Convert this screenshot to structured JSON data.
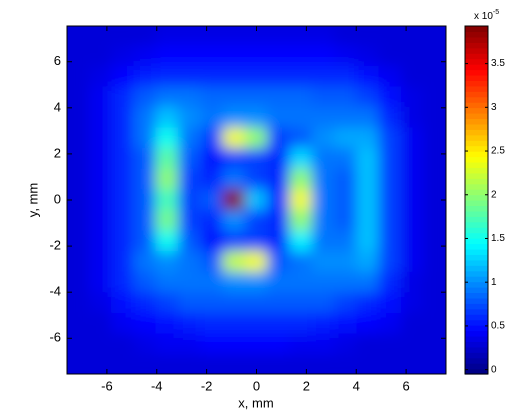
{
  "chart_data": {
    "type": "heatmap",
    "x_label": "x, mm",
    "y_label": "y, mm",
    "colormap": "jet",
    "xlim": [
      -7.6,
      7.6
    ],
    "ylim": [
      -7.55,
      7.55
    ],
    "xticks": [
      -6,
      -4,
      -2,
      0,
      2,
      4,
      6
    ],
    "yticks": [
      -6,
      -4,
      -2,
      0,
      2,
      4,
      6
    ],
    "clim": [
      -0.05,
      3.93
    ],
    "cticks": [
      0,
      0.5,
      1,
      1.5,
      2,
      2.5,
      3,
      3.5
    ],
    "colorbar_scale": {
      "base": "x 10",
      "exponent": "-5"
    },
    "x": [
      -7.15,
      -6.26,
      -5.36,
      -4.47,
      -3.58,
      -2.68,
      -1.79,
      -0.89,
      0,
      0.89,
      1.79,
      2.68,
      3.58,
      4.47,
      5.36,
      6.26,
      7.15
    ],
    "y": [
      7.15,
      6.26,
      5.36,
      4.47,
      3.58,
      2.68,
      1.79,
      0.89,
      0,
      -0.89,
      -1.79,
      -2.68,
      -3.58,
      -4.47,
      -5.36,
      -6.26,
      -7.15
    ],
    "z": [
      [
        0.3,
        0.3,
        0.3,
        0.3,
        0.35,
        0.35,
        0.35,
        0.35,
        0.35,
        0.35,
        0.35,
        0.35,
        0.3,
        0.3,
        0.3,
        0.3,
        0.3
      ],
      [
        0.3,
        0.3,
        0.35,
        0.4,
        0.45,
        0.45,
        0.45,
        0.45,
        0.45,
        0.45,
        0.45,
        0.45,
        0.4,
        0.35,
        0.3,
        0.3,
        0.3
      ],
      [
        0.3,
        0.35,
        0.45,
        0.55,
        0.6,
        0.6,
        0.6,
        0.6,
        0.6,
        0.6,
        0.6,
        0.6,
        0.6,
        0.5,
        0.4,
        0.3,
        0.3
      ],
      [
        0.3,
        0.4,
        0.6,
        0.8,
        0.9,
        0.9,
        0.85,
        0.85,
        0.85,
        0.85,
        0.85,
        0.8,
        0.8,
        0.7,
        0.5,
        0.35,
        0.3
      ],
      [
        0.3,
        0.4,
        0.6,
        0.9,
        1.2,
        1.0,
        0.9,
        1.0,
        1.0,
        0.9,
        0.9,
        0.9,
        0.9,
        0.9,
        0.6,
        0.35,
        0.3
      ],
      [
        0.3,
        0.4,
        0.6,
        0.9,
        1.5,
        0.9,
        0.7,
        2.4,
        2.0,
        0.7,
        0.8,
        1.0,
        1.1,
        1.1,
        0.7,
        0.4,
        0.3
      ],
      [
        0.3,
        0.4,
        0.6,
        0.8,
        1.8,
        0.8,
        0.5,
        0.7,
        0.7,
        0.6,
        1.3,
        0.9,
        0.9,
        1.2,
        0.7,
        0.4,
        0.3
      ],
      [
        0.3,
        0.4,
        0.6,
        0.8,
        2.0,
        0.7,
        0.6,
        0.9,
        0.7,
        0.6,
        2.0,
        0.9,
        0.8,
        1.2,
        0.7,
        0.4,
        0.3
      ],
      [
        0.3,
        0.4,
        0.6,
        0.8,
        1.7,
        0.7,
        0.8,
        3.9,
        1.2,
        0.6,
        2.4,
        0.9,
        0.8,
        1.2,
        0.7,
        0.4,
        0.3
      ],
      [
        0.3,
        0.4,
        0.6,
        0.8,
        1.9,
        0.7,
        0.6,
        1.0,
        0.7,
        0.6,
        2.0,
        0.9,
        0.8,
        1.2,
        0.7,
        0.4,
        0.3
      ],
      [
        0.3,
        0.4,
        0.6,
        0.8,
        1.5,
        0.8,
        0.5,
        0.7,
        0.7,
        0.6,
        1.4,
        0.9,
        0.9,
        1.2,
        0.7,
        0.4,
        0.3
      ],
      [
        0.3,
        0.4,
        0.6,
        0.9,
        1.0,
        0.9,
        0.8,
        2.2,
        2.4,
        0.8,
        0.9,
        1.0,
        1.0,
        1.1,
        0.7,
        0.4,
        0.3
      ],
      [
        0.3,
        0.4,
        0.6,
        0.8,
        0.9,
        0.9,
        0.9,
        1.0,
        1.0,
        0.9,
        0.9,
        0.9,
        0.9,
        0.9,
        0.6,
        0.35,
        0.3
      ],
      [
        0.3,
        0.35,
        0.5,
        0.6,
        0.7,
        0.8,
        0.8,
        0.8,
        0.8,
        0.8,
        0.8,
        0.8,
        0.7,
        0.6,
        0.5,
        0.35,
        0.3
      ],
      [
        0.3,
        0.3,
        0.4,
        0.45,
        0.5,
        0.55,
        0.6,
        0.6,
        0.6,
        0.6,
        0.6,
        0.55,
        0.5,
        0.45,
        0.4,
        0.3,
        0.3
      ],
      [
        0.3,
        0.3,
        0.3,
        0.35,
        0.4,
        0.4,
        0.45,
        0.45,
        0.45,
        0.45,
        0.4,
        0.4,
        0.35,
        0.3,
        0.3,
        0.3,
        0.3
      ],
      [
        0.3,
        0.3,
        0.3,
        0.3,
        0.3,
        0.3,
        0.3,
        0.3,
        0.3,
        0.3,
        0.3,
        0.3,
        0.3,
        0.3,
        0.3,
        0.3,
        0.3
      ]
    ]
  }
}
